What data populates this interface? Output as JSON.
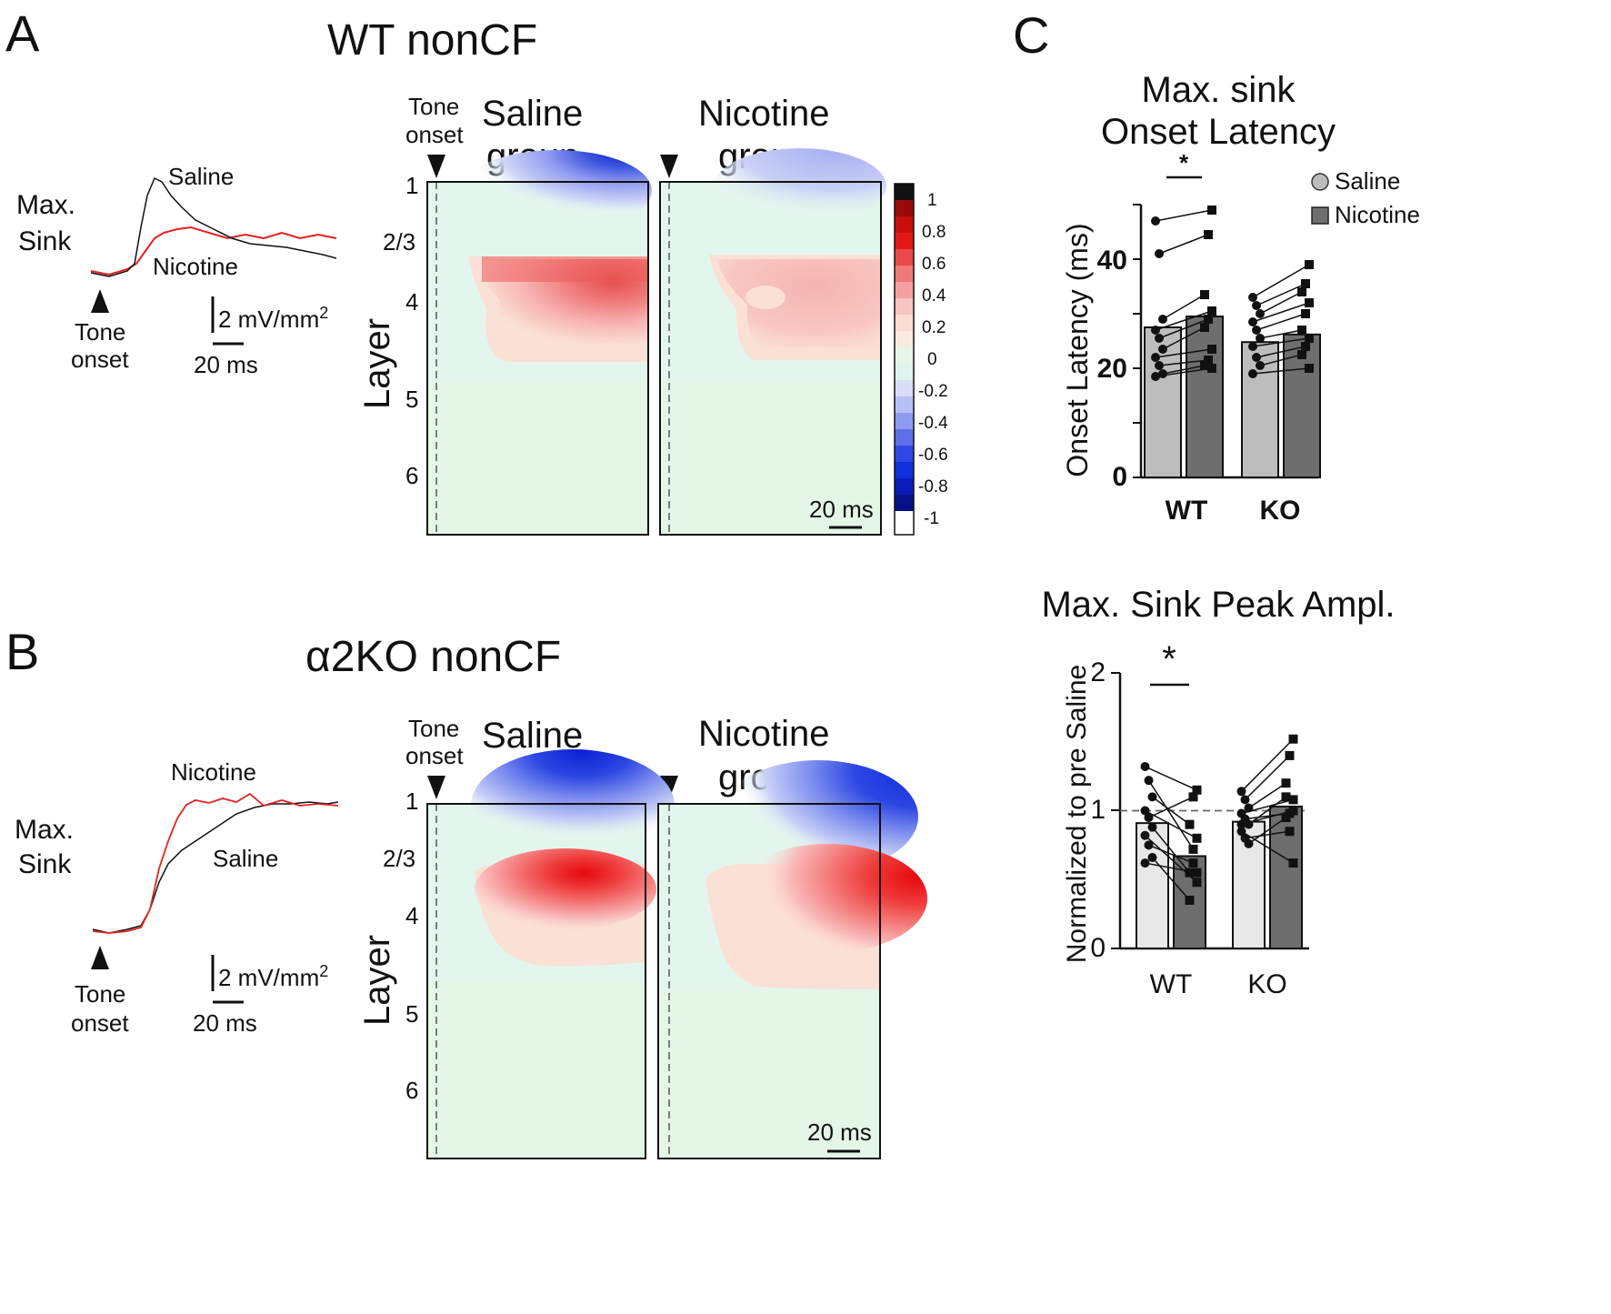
{
  "figure": {
    "panel_a": {
      "letter": "A",
      "title": "WT nonCF"
    },
    "panel_b": {
      "letter": "B",
      "title": "α2KO nonCF"
    },
    "panel_c": {
      "letter": "C"
    }
  },
  "traces": {
    "max_sink_line1": "Max.",
    "max_sink_line2": "Sink",
    "tone_line1": "Tone",
    "tone_line2": "onset",
    "scale_v": "2 mV/mm",
    "scale_v_sup": "2",
    "scale_t": "20 ms",
    "saline": "Saline",
    "nicotine": "Nicotine",
    "colors": {
      "saline": "#111111",
      "nicotine": "#e32222"
    }
  },
  "csd": {
    "tone_line1": "Tone",
    "tone_line2": "onset",
    "saline_line1": "Saline",
    "saline_line2": "group",
    "nicotine_line1": "Nicotine",
    "nicotine_line2": "group",
    "layer_axis": "Layer",
    "layers": [
      "1",
      "2/3",
      "4",
      "5",
      "6"
    ],
    "scale_t": "20 ms",
    "colorbar_ticks": [
      "1",
      "0.8",
      "0.6",
      "0.4",
      "0.2",
      "0",
      "-0.2",
      "-0.4",
      "-0.6",
      "-0.8",
      "-1"
    ]
  },
  "chart_data": [
    {
      "type": "bar",
      "title": "Max. sink Onset Latency",
      "title_line1": "Max. sink",
      "title_line2": "Onset Latency",
      "ylabel": "Onset Latency (ms)",
      "xlabel": "",
      "categories": [
        "WT",
        "KO"
      ],
      "ylim": [
        0,
        50
      ],
      "yticks": [
        "0",
        "20",
        "40"
      ],
      "legend": [
        "Saline",
        "Nicotine"
      ],
      "significance": "*",
      "series": [
        {
          "name": "Saline",
          "values": [
            27.5,
            24.8
          ],
          "color": "#bdbdbd"
        },
        {
          "name": "Nicotine",
          "values": [
            29.5,
            26.2
          ],
          "color": "#6e6e6e"
        }
      ],
      "paired_points": {
        "WT": [
          [
            47,
            49
          ],
          [
            41,
            44.5
          ],
          [
            29,
            33.5
          ],
          [
            27,
            30.5
          ],
          [
            25.5,
            29
          ],
          [
            23.5,
            27.5
          ],
          [
            22,
            23.5
          ],
          [
            20.5,
            21.5
          ],
          [
            19,
            20.5
          ],
          [
            18.5,
            20
          ]
        ],
        "KO": [
          [
            33,
            39
          ],
          [
            31.5,
            35.5
          ],
          [
            30,
            34
          ],
          [
            28.5,
            32
          ],
          [
            27,
            30
          ],
          [
            25.5,
            27
          ],
          [
            24,
            25.5
          ],
          [
            22,
            24
          ],
          [
            20.5,
            22.5
          ],
          [
            19,
            20
          ]
        ]
      }
    },
    {
      "type": "bar",
      "title": "Max. Sink Peak Ampl.",
      "ylabel": "Normalized to pre Saline",
      "xlabel": "",
      "categories": [
        "WT",
        "KO"
      ],
      "ylim": [
        0,
        2
      ],
      "yticks": [
        "0",
        "1",
        "2"
      ],
      "reference_line": 1,
      "significance": "*",
      "series": [
        {
          "name": "Saline",
          "values": [
            0.91,
            0.92
          ],
          "color": "#e8e8e8"
        },
        {
          "name": "Nicotine",
          "values": [
            0.67,
            1.03
          ],
          "color": "#6e6e6e"
        }
      ],
      "paired_points": {
        "WT": [
          [
            1.32,
            1.15
          ],
          [
            1.22,
            0.72
          ],
          [
            1.1,
            0.9
          ],
          [
            1.0,
            0.8
          ],
          [
            0.95,
            1.1
          ],
          [
            0.88,
            0.55
          ],
          [
            0.82,
            0.48
          ],
          [
            0.75,
            0.62
          ],
          [
            0.66,
            0.35
          ],
          [
            0.62,
            0.55
          ]
        ],
        "KO": [
          [
            1.14,
            1.52
          ],
          [
            1.08,
            1.4
          ],
          [
            1.02,
            1.2
          ],
          [
            0.98,
            1.08
          ],
          [
            0.94,
            0.98
          ],
          [
            0.9,
            1.1
          ],
          [
            0.85,
            0.62
          ],
          [
            0.8,
            0.85
          ],
          [
            0.76,
            0.95
          ],
          [
            0.9,
            1.0
          ]
        ]
      }
    }
  ]
}
